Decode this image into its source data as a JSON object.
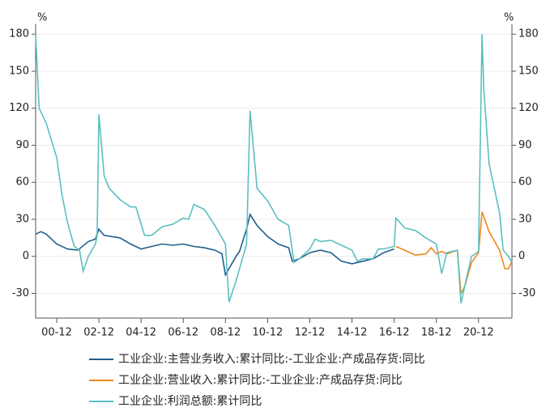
{
  "chart_data": {
    "type": "line",
    "y_unit": "%",
    "y2_unit": "%",
    "xlim": [
      "99-12",
      "22-07"
    ],
    "xticks": [
      "00-12",
      "02-12",
      "04-12",
      "06-12",
      "08-12",
      "10-12",
      "12-12",
      "14-12",
      "16-12",
      "18-12",
      "20-12"
    ],
    "ylim": [
      -50,
      188
    ],
    "yticks": [
      -30,
      0,
      30,
      60,
      90,
      120,
      150,
      180
    ],
    "y2lim": [
      -50,
      188
    ],
    "y2ticks": [
      -30,
      0,
      30,
      60,
      90,
      120,
      150,
      180
    ],
    "grid": true,
    "legend": "bottom",
    "series": [
      {
        "name": "工业企业:主营业务收入:累计同比:-工业企业:产成品存货:同比",
        "color": "#1f5f8b",
        "x": [
          "99-12",
          "00-03",
          "00-06",
          "00-12",
          "01-06",
          "01-12",
          "02-06",
          "02-10",
          "02-12",
          "03-03",
          "03-12",
          "04-06",
          "04-12",
          "05-06",
          "05-12",
          "06-06",
          "06-12",
          "07-06",
          "07-12",
          "08-06",
          "08-10",
          "08-12",
          "09-06",
          "09-08",
          "09-12",
          "10-02",
          "10-06",
          "10-12",
          "11-06",
          "11-12",
          "12-02",
          "12-06",
          "12-12",
          "13-06",
          "13-12",
          "14-06",
          "14-12",
          "15-06",
          "15-12",
          "16-06",
          "16-12"
        ],
        "values": [
          18,
          20,
          18,
          10,
          6,
          5,
          12,
          14,
          22,
          17,
          15,
          10,
          6,
          8,
          10,
          9,
          10,
          8,
          7,
          5,
          2,
          -15,
          0,
          4,
          22,
          34,
          25,
          16,
          10,
          7,
          -4,
          -2,
          3,
          5,
          3,
          -4,
          -6,
          -4,
          -2,
          3,
          6
        ]
      },
      {
        "name": "工业企业:营业收入:累计同比:-工业企业:产成品存货:同比",
        "color": "#f0871e",
        "x": [
          "17-01",
          "17-06",
          "17-12",
          "18-06",
          "18-09",
          "18-12",
          "19-03",
          "19-06",
          "19-12",
          "20-02",
          "20-04",
          "20-08",
          "20-12",
          "21-02",
          "21-06",
          "21-12",
          "22-03",
          "22-05",
          "22-07"
        ],
        "values": [
          8,
          5,
          1,
          2,
          7,
          2,
          4,
          2,
          5,
          -30,
          -25,
          -5,
          3,
          36,
          20,
          5,
          -10,
          -10,
          -4
        ]
      },
      {
        "name": "工业企业:利润总额:累计同比",
        "color": "#5bbfc0",
        "x": [
          "99-12",
          "00-02",
          "00-06",
          "00-12",
          "01-03",
          "01-06",
          "01-10",
          "02-01",
          "02-03",
          "02-06",
          "02-10",
          "02-11",
          "02-12",
          "03-03",
          "03-06",
          "03-12",
          "04-06",
          "04-09",
          "05-02",
          "05-06",
          "05-12",
          "06-06",
          "06-12",
          "07-03",
          "07-06",
          "07-12",
          "08-06",
          "08-12",
          "09-02",
          "09-06",
          "09-12",
          "10-02",
          "10-06",
          "10-12",
          "11-06",
          "11-12",
          "12-03",
          "12-06",
          "12-12",
          "13-03",
          "13-06",
          "13-12",
          "14-06",
          "14-12",
          "15-03",
          "15-06",
          "15-12",
          "16-03",
          "16-06",
          "16-12",
          "17-01",
          "17-06",
          "17-12",
          "18-06",
          "18-12",
          "19-03",
          "19-06",
          "19-12",
          "20-02",
          "20-04",
          "20-08",
          "20-12",
          "21-02",
          "21-03",
          "21-06",
          "21-12",
          "22-02",
          "22-05",
          "22-07"
        ],
        "values": [
          180,
          120,
          108,
          80,
          50,
          28,
          8,
          5,
          -12,
          0,
          10,
          17,
          115,
          65,
          55,
          46,
          40,
          40,
          17,
          17,
          24,
          26,
          31,
          30,
          42,
          38,
          25,
          10,
          -37,
          -20,
          10,
          118,
          55,
          45,
          30,
          25,
          -5,
          -2,
          6,
          14,
          12,
          13,
          9,
          5,
          -4,
          -2,
          -2,
          6,
          6,
          8,
          31,
          23,
          21,
          15,
          10,
          -14,
          3,
          5,
          -38,
          -25,
          0,
          4,
          180,
          135,
          75,
          35,
          5,
          0,
          -5
        ]
      }
    ]
  }
}
